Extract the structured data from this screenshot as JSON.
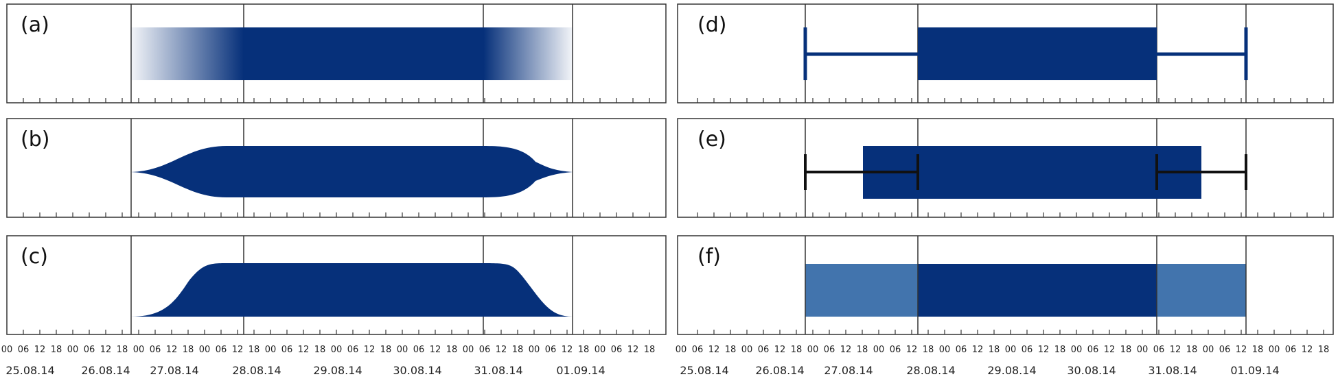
{
  "figure": {
    "colors": {
      "primary": "#06307a",
      "light": "#4274ad",
      "frame": "#333333",
      "whisker_dark": "#111111"
    }
  },
  "axis": {
    "hour_labels": [
      "00",
      "06",
      "12",
      "18"
    ],
    "date_labels": [
      "25.08.14",
      "26.08.14",
      "27.08.14",
      "28.08.14",
      "29.08.14",
      "30.08.14",
      "31.08.14",
      "01.09.14"
    ],
    "last_hour_label": "00"
  },
  "panels": [
    {
      "label": "(a)",
      "style": "gradient-fade"
    },
    {
      "label": "(b)",
      "style": "symmetric-taper"
    },
    {
      "label": "(c)",
      "style": "rising-falling"
    },
    {
      "label": "(d)",
      "style": "bar-with-thin-whiskers"
    },
    {
      "label": "(e)",
      "style": "bar-with-dark-whiskers"
    },
    {
      "label": "(f)",
      "style": "core-with-light-ends"
    }
  ],
  "interval": {
    "earliest_start": "26.08.14 12:00",
    "latest_start": "27.08.14 20:00",
    "earliest_end": "30.08.14 20:00",
    "latest_end": "31.08.14 22:00",
    "panel_e_bar_start": "27.08.14 06:00",
    "panel_e_bar_end": "31.08.14 10:00"
  }
}
